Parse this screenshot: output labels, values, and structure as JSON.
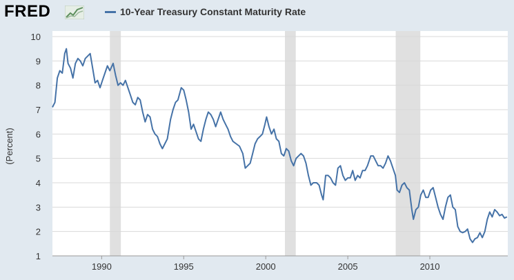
{
  "header": {
    "logo_text": "FRED",
    "series_title": "10-Year Treasury Constant Maturity Rate"
  },
  "colors": {
    "series": "#4572a7",
    "recession": "#e0e0e0",
    "plot_background": "#ffffff",
    "page_background": "#e1e9f0",
    "grid": "#d8d8d8"
  },
  "chart_data": {
    "type": "line",
    "title": "10-Year Treasury Constant Maturity Rate",
    "xlabel": "",
    "ylabel": "(Percent)",
    "xlim": [
      1987.0,
      2014.75
    ],
    "ylim": [
      1,
      10
    ],
    "x_ticks": [
      1990,
      1995,
      2000,
      2005,
      2010
    ],
    "y_ticks": [
      1,
      2,
      3,
      4,
      5,
      6,
      7,
      8,
      9,
      10
    ],
    "grid": true,
    "legend": "top-left",
    "recessions": [
      [
        1990.5,
        1991.17
      ],
      [
        2001.17,
        2001.83
      ],
      [
        2007.92,
        2009.42
      ]
    ],
    "series": [
      {
        "name": "10-Year Treasury Constant Maturity Rate",
        "points": [
          [
            1987.0,
            7.1
          ],
          [
            1987.15,
            7.3
          ],
          [
            1987.3,
            8.3
          ],
          [
            1987.45,
            8.6
          ],
          [
            1987.6,
            8.5
          ],
          [
            1987.75,
            9.3
          ],
          [
            1987.85,
            9.5
          ],
          [
            1987.95,
            8.9
          ],
          [
            1988.1,
            8.7
          ],
          [
            1988.25,
            8.3
          ],
          [
            1988.4,
            8.9
          ],
          [
            1988.55,
            9.1
          ],
          [
            1988.7,
            9.0
          ],
          [
            1988.85,
            8.8
          ],
          [
            1989.0,
            9.1
          ],
          [
            1989.15,
            9.2
          ],
          [
            1989.3,
            9.3
          ],
          [
            1989.45,
            8.7
          ],
          [
            1989.6,
            8.1
          ],
          [
            1989.75,
            8.2
          ],
          [
            1989.9,
            7.9
          ],
          [
            1990.05,
            8.2
          ],
          [
            1990.2,
            8.5
          ],
          [
            1990.35,
            8.8
          ],
          [
            1990.5,
            8.6
          ],
          [
            1990.7,
            8.9
          ],
          [
            1990.85,
            8.4
          ],
          [
            1991.0,
            8.0
          ],
          [
            1991.15,
            8.1
          ],
          [
            1991.3,
            8.0
          ],
          [
            1991.45,
            8.2
          ],
          [
            1991.6,
            7.9
          ],
          [
            1991.75,
            7.6
          ],
          [
            1991.9,
            7.3
          ],
          [
            1992.05,
            7.2
          ],
          [
            1992.2,
            7.5
          ],
          [
            1992.35,
            7.4
          ],
          [
            1992.5,
            6.9
          ],
          [
            1992.65,
            6.5
          ],
          [
            1992.8,
            6.8
          ],
          [
            1992.95,
            6.7
          ],
          [
            1993.1,
            6.2
          ],
          [
            1993.25,
            6.0
          ],
          [
            1993.4,
            5.9
          ],
          [
            1993.55,
            5.6
          ],
          [
            1993.7,
            5.4
          ],
          [
            1993.85,
            5.6
          ],
          [
            1994.0,
            5.8
          ],
          [
            1994.2,
            6.6
          ],
          [
            1994.35,
            7.0
          ],
          [
            1994.5,
            7.3
          ],
          [
            1994.65,
            7.4
          ],
          [
            1994.85,
            7.9
          ],
          [
            1995.0,
            7.8
          ],
          [
            1995.15,
            7.4
          ],
          [
            1995.3,
            6.9
          ],
          [
            1995.45,
            6.2
          ],
          [
            1995.6,
            6.4
          ],
          [
            1995.75,
            6.1
          ],
          [
            1995.9,
            5.8
          ],
          [
            1996.05,
            5.7
          ],
          [
            1996.2,
            6.2
          ],
          [
            1996.35,
            6.6
          ],
          [
            1996.5,
            6.9
          ],
          [
            1996.65,
            6.8
          ],
          [
            1996.8,
            6.6
          ],
          [
            1996.95,
            6.3
          ],
          [
            1997.1,
            6.6
          ],
          [
            1997.25,
            6.9
          ],
          [
            1997.4,
            6.6
          ],
          [
            1997.55,
            6.4
          ],
          [
            1997.7,
            6.2
          ],
          [
            1997.85,
            5.9
          ],
          [
            1998.0,
            5.7
          ],
          [
            1998.2,
            5.6
          ],
          [
            1998.4,
            5.5
          ],
          [
            1998.6,
            5.2
          ],
          [
            1998.75,
            4.6
          ],
          [
            1998.9,
            4.7
          ],
          [
            1999.05,
            4.8
          ],
          [
            1999.2,
            5.2
          ],
          [
            1999.35,
            5.6
          ],
          [
            1999.5,
            5.8
          ],
          [
            1999.65,
            5.9
          ],
          [
            1999.8,
            6.0
          ],
          [
            1999.95,
            6.4
          ],
          [
            2000.05,
            6.7
          ],
          [
            2000.2,
            6.3
          ],
          [
            2000.35,
            6.0
          ],
          [
            2000.5,
            6.2
          ],
          [
            2000.65,
            5.8
          ],
          [
            2000.8,
            5.7
          ],
          [
            2000.95,
            5.2
          ],
          [
            2001.1,
            5.1
          ],
          [
            2001.25,
            5.4
          ],
          [
            2001.4,
            5.3
          ],
          [
            2001.55,
            4.9
          ],
          [
            2001.7,
            4.7
          ],
          [
            2001.85,
            5.0
          ],
          [
            2002.0,
            5.1
          ],
          [
            2002.15,
            5.2
          ],
          [
            2002.3,
            5.1
          ],
          [
            2002.45,
            4.8
          ],
          [
            2002.6,
            4.3
          ],
          [
            2002.75,
            3.9
          ],
          [
            2002.9,
            4.0
          ],
          [
            2003.1,
            4.0
          ],
          [
            2003.25,
            3.9
          ],
          [
            2003.4,
            3.5
          ],
          [
            2003.5,
            3.3
          ],
          [
            2003.65,
            4.3
          ],
          [
            2003.8,
            4.3
          ],
          [
            2003.95,
            4.2
          ],
          [
            2004.1,
            4.0
          ],
          [
            2004.25,
            3.9
          ],
          [
            2004.4,
            4.6
          ],
          [
            2004.55,
            4.7
          ],
          [
            2004.7,
            4.3
          ],
          [
            2004.85,
            4.1
          ],
          [
            2005.0,
            4.2
          ],
          [
            2005.15,
            4.2
          ],
          [
            2005.3,
            4.5
          ],
          [
            2005.45,
            4.1
          ],
          [
            2005.6,
            4.3
          ],
          [
            2005.75,
            4.2
          ],
          [
            2005.9,
            4.5
          ],
          [
            2006.05,
            4.5
          ],
          [
            2006.2,
            4.7
          ],
          [
            2006.4,
            5.1
          ],
          [
            2006.55,
            5.1
          ],
          [
            2006.7,
            4.9
          ],
          [
            2006.85,
            4.7
          ],
          [
            2007.0,
            4.7
          ],
          [
            2007.15,
            4.6
          ],
          [
            2007.3,
            4.8
          ],
          [
            2007.45,
            5.1
          ],
          [
            2007.6,
            4.9
          ],
          [
            2007.75,
            4.6
          ],
          [
            2007.9,
            4.3
          ],
          [
            2008.0,
            3.7
          ],
          [
            2008.15,
            3.6
          ],
          [
            2008.3,
            3.9
          ],
          [
            2008.45,
            4.0
          ],
          [
            2008.6,
            3.8
          ],
          [
            2008.75,
            3.7
          ],
          [
            2008.9,
            2.9
          ],
          [
            2009.0,
            2.5
          ],
          [
            2009.15,
            2.9
          ],
          [
            2009.3,
            3.0
          ],
          [
            2009.45,
            3.5
          ],
          [
            2009.6,
            3.7
          ],
          [
            2009.75,
            3.4
          ],
          [
            2009.9,
            3.4
          ],
          [
            2010.05,
            3.7
          ],
          [
            2010.2,
            3.8
          ],
          [
            2010.35,
            3.4
          ],
          [
            2010.5,
            3.0
          ],
          [
            2010.65,
            2.7
          ],
          [
            2010.8,
            2.5
          ],
          [
            2010.95,
            3.0
          ],
          [
            2011.1,
            3.4
          ],
          [
            2011.25,
            3.5
          ],
          [
            2011.4,
            3.0
          ],
          [
            2011.55,
            2.9
          ],
          [
            2011.7,
            2.2
          ],
          [
            2011.85,
            2.0
          ],
          [
            2012.0,
            1.95
          ],
          [
            2012.15,
            2.0
          ],
          [
            2012.3,
            2.1
          ],
          [
            2012.45,
            1.7
          ],
          [
            2012.6,
            1.55
          ],
          [
            2012.75,
            1.7
          ],
          [
            2012.9,
            1.75
          ],
          [
            2013.05,
            1.95
          ],
          [
            2013.2,
            1.75
          ],
          [
            2013.35,
            2.0
          ],
          [
            2013.5,
            2.5
          ],
          [
            2013.65,
            2.8
          ],
          [
            2013.8,
            2.6
          ],
          [
            2013.95,
            2.9
          ],
          [
            2014.1,
            2.8
          ],
          [
            2014.25,
            2.65
          ],
          [
            2014.4,
            2.7
          ],
          [
            2014.55,
            2.55
          ],
          [
            2014.7,
            2.6
          ]
        ]
      }
    ]
  }
}
